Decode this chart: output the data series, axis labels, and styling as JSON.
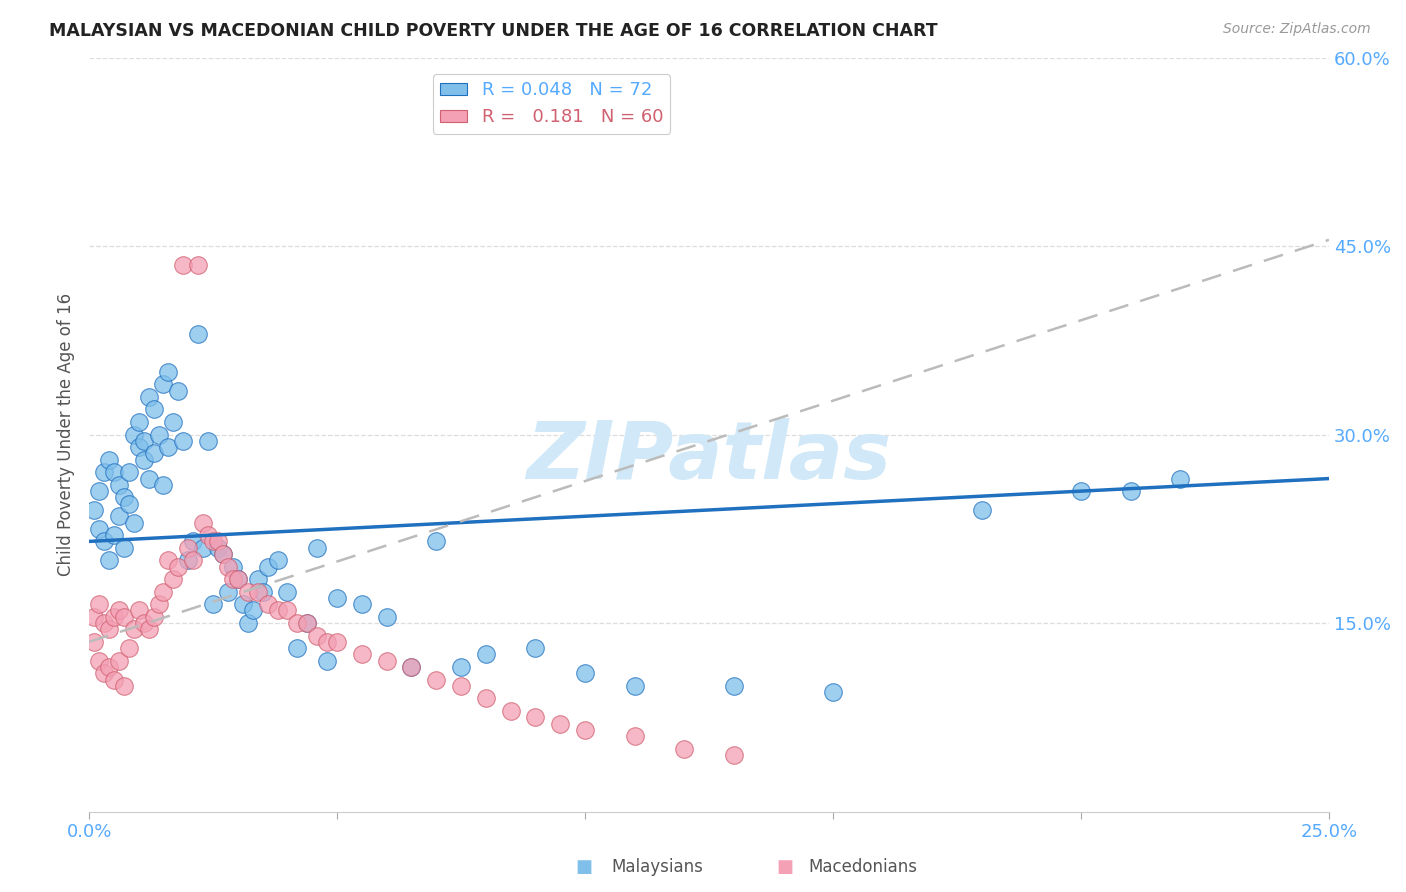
{
  "title": "MALAYSIAN VS MACEDONIAN CHILD POVERTY UNDER THE AGE OF 16 CORRELATION CHART",
  "source": "Source: ZipAtlas.com",
  "ylabel": "Child Poverty Under the Age of 16",
  "xlim": [
    0.0,
    0.25
  ],
  "ylim": [
    0.0,
    0.6
  ],
  "legend_blue_r": "0.048",
  "legend_blue_n": "72",
  "legend_pink_r": "0.181",
  "legend_pink_n": "60",
  "blue_color": "#7fbfea",
  "pink_color": "#f4a0b5",
  "trend_blue_color": "#2070c0",
  "trend_pink_color": "#d06070",
  "axis_label_color": "#55aaff",
  "watermark": "ZIPatlas",
  "watermark_color": "#d0e8f8",
  "background_color": "#ffffff",
  "blue_trend_x0": 0.0,
  "blue_trend_y0": 0.215,
  "blue_trend_x1": 0.25,
  "blue_trend_y1": 0.265,
  "pink_trend_x0": 0.0,
  "pink_trend_y0": 0.135,
  "pink_trend_x1": 0.25,
  "pink_trend_y1": 0.455,
  "malaysians_x": [
    0.001,
    0.002,
    0.002,
    0.003,
    0.003,
    0.004,
    0.004,
    0.005,
    0.005,
    0.006,
    0.006,
    0.007,
    0.007,
    0.008,
    0.008,
    0.009,
    0.009,
    0.01,
    0.01,
    0.011,
    0.011,
    0.012,
    0.012,
    0.013,
    0.013,
    0.014,
    0.015,
    0.015,
    0.016,
    0.016,
    0.017,
    0.018,
    0.019,
    0.02,
    0.021,
    0.022,
    0.023,
    0.024,
    0.025,
    0.026,
    0.027,
    0.028,
    0.029,
    0.03,
    0.031,
    0.032,
    0.033,
    0.034,
    0.035,
    0.036,
    0.038,
    0.04,
    0.042,
    0.044,
    0.046,
    0.048,
    0.05,
    0.055,
    0.06,
    0.065,
    0.07,
    0.075,
    0.08,
    0.09,
    0.1,
    0.11,
    0.13,
    0.15,
    0.18,
    0.2,
    0.21,
    0.22
  ],
  "malaysians_y": [
    0.24,
    0.255,
    0.225,
    0.27,
    0.215,
    0.28,
    0.2,
    0.27,
    0.22,
    0.26,
    0.235,
    0.25,
    0.21,
    0.245,
    0.27,
    0.23,
    0.3,
    0.29,
    0.31,
    0.295,
    0.28,
    0.33,
    0.265,
    0.32,
    0.285,
    0.3,
    0.34,
    0.26,
    0.35,
    0.29,
    0.31,
    0.335,
    0.295,
    0.2,
    0.215,
    0.38,
    0.21,
    0.295,
    0.165,
    0.21,
    0.205,
    0.175,
    0.195,
    0.185,
    0.165,
    0.15,
    0.16,
    0.185,
    0.175,
    0.195,
    0.2,
    0.175,
    0.13,
    0.15,
    0.21,
    0.12,
    0.17,
    0.165,
    0.155,
    0.115,
    0.215,
    0.115,
    0.125,
    0.13,
    0.11,
    0.1,
    0.1,
    0.095,
    0.24,
    0.255,
    0.255,
    0.265
  ],
  "macedonians_x": [
    0.001,
    0.001,
    0.002,
    0.002,
    0.003,
    0.003,
    0.004,
    0.004,
    0.005,
    0.005,
    0.006,
    0.006,
    0.007,
    0.007,
    0.008,
    0.009,
    0.01,
    0.011,
    0.012,
    0.013,
    0.014,
    0.015,
    0.016,
    0.017,
    0.018,
    0.019,
    0.02,
    0.021,
    0.022,
    0.023,
    0.024,
    0.025,
    0.026,
    0.027,
    0.028,
    0.029,
    0.03,
    0.032,
    0.034,
    0.036,
    0.038,
    0.04,
    0.042,
    0.044,
    0.046,
    0.048,
    0.05,
    0.055,
    0.06,
    0.065,
    0.07,
    0.075,
    0.08,
    0.085,
    0.09,
    0.095,
    0.1,
    0.11,
    0.12,
    0.13
  ],
  "macedonians_y": [
    0.155,
    0.135,
    0.165,
    0.12,
    0.15,
    0.11,
    0.145,
    0.115,
    0.155,
    0.105,
    0.16,
    0.12,
    0.155,
    0.1,
    0.13,
    0.145,
    0.16,
    0.15,
    0.145,
    0.155,
    0.165,
    0.175,
    0.2,
    0.185,
    0.195,
    0.435,
    0.21,
    0.2,
    0.435,
    0.23,
    0.22,
    0.215,
    0.215,
    0.205,
    0.195,
    0.185,
    0.185,
    0.175,
    0.175,
    0.165,
    0.16,
    0.16,
    0.15,
    0.15,
    0.14,
    0.135,
    0.135,
    0.125,
    0.12,
    0.115,
    0.105,
    0.1,
    0.09,
    0.08,
    0.075,
    0.07,
    0.065,
    0.06,
    0.05,
    0.045
  ]
}
